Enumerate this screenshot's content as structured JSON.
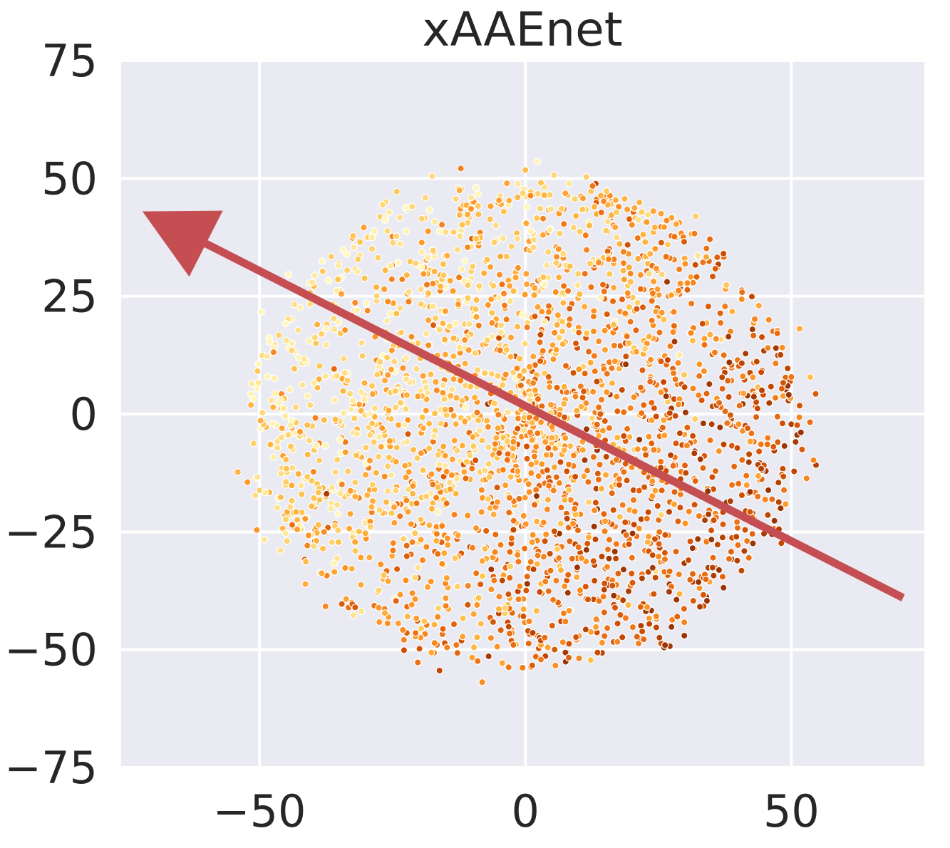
{
  "chart_data": {
    "type": "scatter",
    "title": "xAAEnet",
    "xlabel": "",
    "ylabel": "",
    "xlim": [
      -76,
      75
    ],
    "ylim": [
      -75,
      75
    ],
    "xticks": [
      -50,
      0,
      50
    ],
    "yticks": [
      -75,
      -50,
      -25,
      0,
      25,
      50,
      75
    ],
    "xtick_labels": [
      "−50",
      "0",
      "50"
    ],
    "ytick_labels": [
      "−75",
      "−50",
      "−25",
      "0",
      "25",
      "50",
      "75"
    ],
    "grid": true,
    "legend": "none",
    "plot_background": "#eaeaf2",
    "colormap": [
      "#fff7bc",
      "#fee391",
      "#fec44f",
      "#fe9929",
      "#ec7014",
      "#cc4c02",
      "#993404"
    ],
    "point_cloud": {
      "approx_count": 6000,
      "center": [
        0,
        -2
      ],
      "radius": 52,
      "color_gradient": "light toward upper-left, dark toward lower-right"
    },
    "arrow": {
      "color": "#c44e52",
      "from": [
        71,
        -39
      ],
      "to": [
        -72,
        43
      ]
    }
  }
}
